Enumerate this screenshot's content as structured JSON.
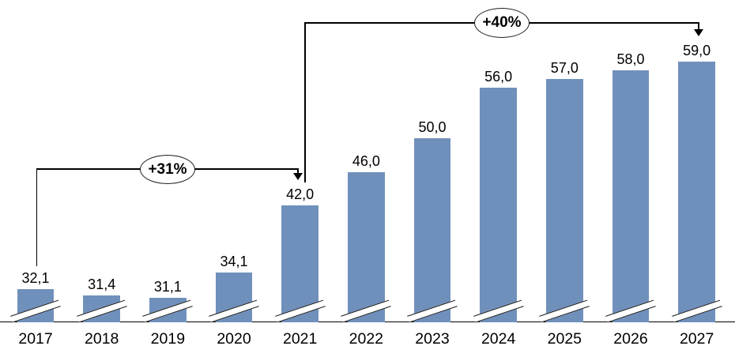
{
  "chart_data": {
    "type": "bar",
    "title": "",
    "xlabel": "",
    "ylabel": "",
    "categories": [
      "2017",
      "2018",
      "2019",
      "2020",
      "2021",
      "2022",
      "2023",
      "2024",
      "2025",
      "2026",
      "2027"
    ],
    "values": [
      32.1,
      31.4,
      31.1,
      34.1,
      42.0,
      46.0,
      50.0,
      56.0,
      57.0,
      58.0,
      59.0
    ],
    "value_labels": [
      "32,1",
      "31,4",
      "31,1",
      "34,1",
      "42,0",
      "46,0",
      "50,0",
      "56,0",
      "57,0",
      "58,0",
      "59,0"
    ],
    "decimal_separator": ",",
    "axis_break": true,
    "legend": false,
    "grid": false,
    "bar_color": "#7090BC",
    "axis_color": "#000000",
    "annotations": [
      {
        "label": "+31%",
        "from_category": "2017",
        "to_category": "2021"
      },
      {
        "label": "+40%",
        "from_category": "2021",
        "to_category": "2027"
      }
    ]
  }
}
